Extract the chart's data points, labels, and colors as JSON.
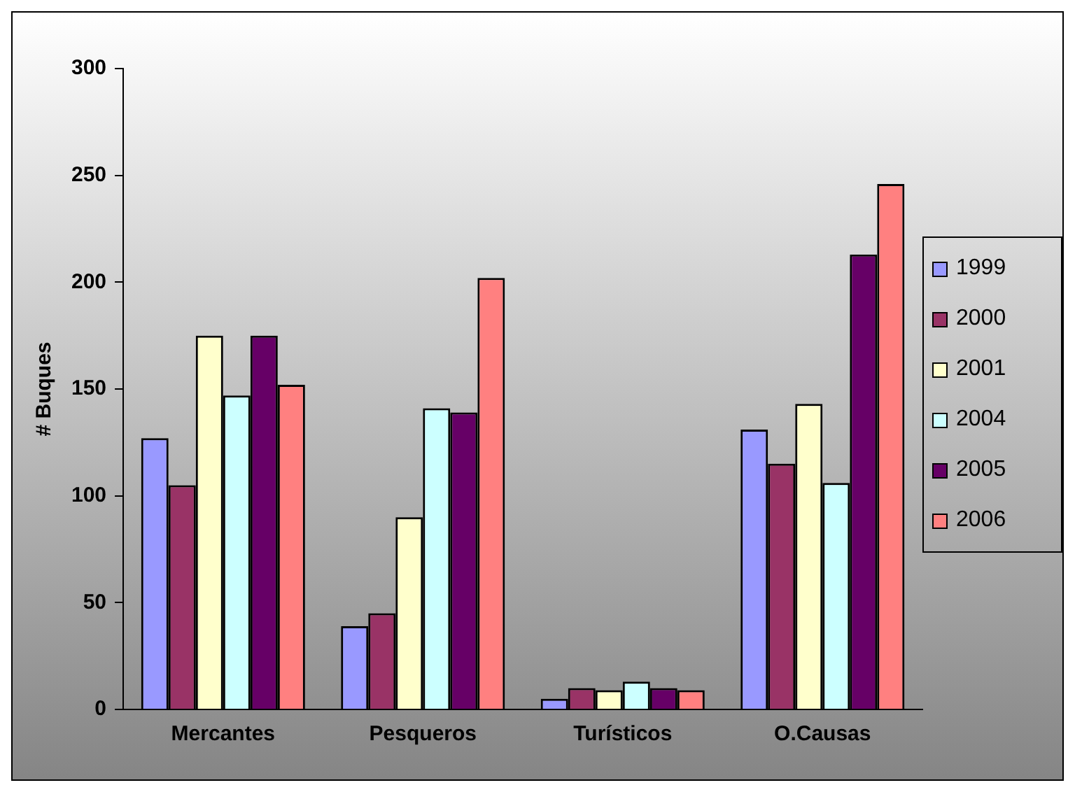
{
  "chart_data": {
    "type": "bar",
    "ylabel": "# Buques",
    "categories": [
      "Mercantes",
      "Pesqueros",
      "Turísticos",
      "O.Causas"
    ],
    "series": [
      {
        "name": "1999",
        "color": "#9999ff",
        "values": [
          127,
          39,
          5,
          131
        ]
      },
      {
        "name": "2000",
        "color": "#993366",
        "values": [
          105,
          45,
          10,
          115
        ]
      },
      {
        "name": "2001",
        "color": "#ffffcc",
        "values": [
          175,
          90,
          9,
          143
        ]
      },
      {
        "name": "2004",
        "color": "#ccffff",
        "values": [
          147,
          141,
          13,
          106
        ]
      },
      {
        "name": "2005",
        "color": "#660066",
        "values": [
          175,
          139,
          10,
          213
        ]
      },
      {
        "name": "2006",
        "color": "#ff8080",
        "values": [
          152,
          202,
          9,
          246
        ]
      }
    ],
    "ylim": [
      0,
      300
    ],
    "yticks": [
      0,
      50,
      100,
      150,
      200,
      250,
      300
    ],
    "grid": false,
    "legend": "right"
  }
}
